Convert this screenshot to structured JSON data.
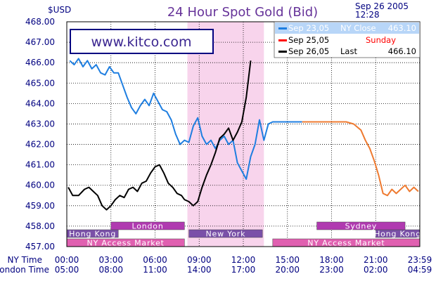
{
  "chart_data": {
    "type": "line",
    "title": "24 Hour Spot Gold (Bid)",
    "ylabel": "$USD",
    "date": "Sep 26 2005",
    "time": "12:28",
    "watermark": "www.kitco.com",
    "ylim": [
      457.0,
      468.0
    ],
    "y_ticks": [
      "468.00",
      "467.00",
      "466.00",
      "465.00",
      "464.00",
      "463.00",
      "462.00",
      "461.00",
      "460.00",
      "459.00",
      "458.00",
      "457.00"
    ],
    "x_hours": [
      0,
      24
    ],
    "x_tick_hours": [
      0,
      3,
      6,
      9,
      12,
      15,
      18,
      21,
      24
    ],
    "ny_time_label": "NY Time",
    "london_time_label": "London Time",
    "ny_time_ticks": [
      "00:00",
      "03:00",
      "06:00",
      "09:00",
      "12:00",
      "15:00",
      "18:00",
      "21:00",
      "23:59"
    ],
    "london_time_ticks": [
      "05:00",
      "08:00",
      "11:00",
      "14:00",
      "17:00",
      "20:00",
      "23:00",
      "02:00",
      "04:59"
    ],
    "colors": {
      "sep23": "#1e7ee0",
      "sep25": "#ee7a30",
      "sep26": "#000000",
      "sep25_legend": "#ff0000",
      "title": "#663399",
      "axis_text": "#000080",
      "market_bar": "#b03ab0",
      "access_bar": "#e060b0",
      "hk_bar": "#7a50a8",
      "highlight": "#f8d4ec",
      "legend_bg": "#b8d6f8"
    },
    "legend": [
      {
        "date": "Sep 23,05",
        "label": "NY Close",
        "value": "463.10",
        "color": "#1e7ee0"
      },
      {
        "date": "Sep 25,05",
        "label": "Sunday",
        "value": "",
        "color": "#ff0000"
      },
      {
        "date": "Sep 26,05",
        "label": "Last",
        "value": "466.10",
        "color": "#000000"
      }
    ],
    "markets": [
      {
        "name": "Hong Kong",
        "color": "#7a50a8",
        "segments": [
          [
            0,
            3.5
          ],
          [
            21,
            24
          ]
        ],
        "row": 1
      },
      {
        "name": "London",
        "color": "#b03ab0",
        "segments": [
          [
            3,
            8
          ]
        ],
        "row": 0
      },
      {
        "name": "New York",
        "color": "#7a50a8",
        "segments": [
          [
            8.3,
            13.3
          ]
        ],
        "row": 1
      },
      {
        "name": "Sydney",
        "color": "#b03ab0",
        "segments": [
          [
            17,
            23
          ]
        ],
        "row": 0
      },
      {
        "name": "NY Access Market",
        "color": "#e060b0",
        "segments": [
          [
            0,
            8
          ],
          [
            14,
            24
          ]
        ],
        "row": 2
      }
    ],
    "highlight_hours": [
      8.2,
      13.4
    ],
    "series": [
      {
        "name": "Sep 23,05",
        "color": "#1e7ee0",
        "x": [
          0.2,
          0.5,
          0.8,
          1.1,
          1.4,
          1.7,
          2.0,
          2.3,
          2.6,
          2.9,
          3.2,
          3.5,
          3.8,
          4.1,
          4.4,
          4.7,
          5.0,
          5.3,
          5.6,
          5.9,
          6.2,
          6.5,
          6.8,
          7.1,
          7.4,
          7.7,
          8.0,
          8.3,
          8.6,
          8.9,
          9.2,
          9.5,
          9.8,
          10.1,
          10.4,
          10.7,
          11.0,
          11.3,
          11.6,
          11.9,
          12.2,
          12.5,
          12.8,
          13.1,
          13.4,
          13.7,
          14.0,
          14.5,
          15.0,
          16.0
        ],
        "y": [
          466.1,
          465.9,
          466.2,
          465.8,
          466.1,
          465.7,
          465.9,
          465.5,
          465.4,
          465.8,
          465.5,
          465.5,
          464.9,
          464.3,
          463.8,
          463.5,
          463.9,
          464.2,
          463.9,
          464.5,
          464.1,
          463.7,
          463.6,
          463.2,
          462.5,
          462.0,
          462.2,
          462.1,
          462.9,
          463.3,
          462.4,
          462.0,
          462.2,
          461.8,
          462.2,
          462.4,
          462.0,
          462.2,
          461.1,
          460.7,
          460.3,
          461.4,
          462.0,
          463.2,
          462.2,
          463.0,
          463.1,
          463.1,
          463.1,
          463.1
        ]
      },
      {
        "name": "Sep 25,05",
        "color": "#ee7a30",
        "x": [
          16.0,
          17.0,
          18.0,
          19.0,
          19.5,
          20.0,
          20.3,
          20.6,
          20.9,
          21.2,
          21.5,
          21.8,
          22.1,
          22.4,
          22.7,
          23.0,
          23.3,
          23.6,
          23.9
        ],
        "y": [
          463.1,
          463.1,
          463.1,
          463.1,
          463.0,
          462.7,
          462.2,
          461.8,
          461.2,
          460.5,
          459.6,
          459.5,
          459.8,
          459.6,
          459.8,
          460.0,
          459.7,
          459.9,
          459.7
        ]
      },
      {
        "name": "Sep 26,05",
        "color": "#000000",
        "x": [
          0.1,
          0.4,
          0.8,
          1.2,
          1.5,
          1.8,
          2.1,
          2.4,
          2.7,
          3.0,
          3.3,
          3.6,
          3.9,
          4.2,
          4.5,
          4.8,
          5.1,
          5.4,
          5.7,
          6.0,
          6.3,
          6.6,
          6.9,
          7.2,
          7.5,
          7.8,
          8.0,
          8.3,
          8.6,
          8.9,
          9.2,
          9.5,
          9.8,
          10.1,
          10.4,
          10.7,
          11.0,
          11.3,
          11.6,
          11.9,
          12.2,
          12.5
        ],
        "y": [
          459.9,
          459.5,
          459.5,
          459.8,
          459.9,
          459.7,
          459.5,
          459.0,
          458.8,
          459.0,
          459.3,
          459.5,
          459.4,
          459.8,
          459.9,
          459.7,
          460.1,
          460.2,
          460.6,
          460.9,
          461.0,
          460.6,
          460.1,
          459.9,
          459.6,
          459.5,
          459.3,
          459.2,
          459.0,
          459.2,
          459.9,
          460.5,
          461.0,
          461.6,
          462.3,
          462.5,
          462.8,
          462.2,
          462.6,
          463.1,
          464.3,
          466.1
        ]
      }
    ]
  }
}
